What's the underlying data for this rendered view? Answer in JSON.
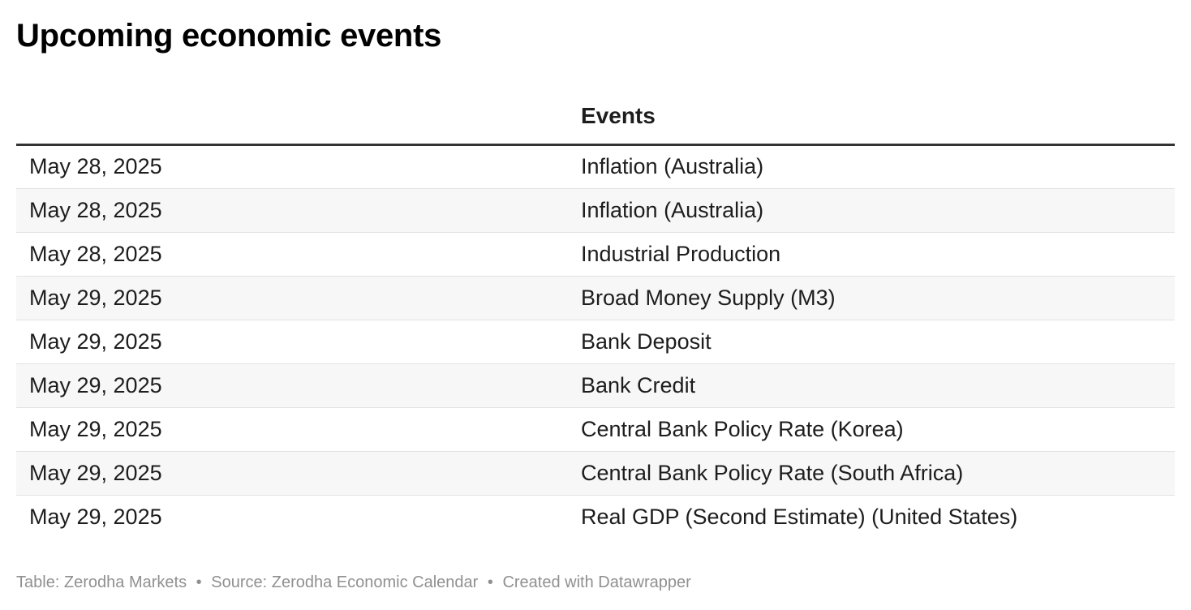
{
  "title": "Upcoming economic events",
  "chart_data": {
    "type": "table",
    "columns": [
      "",
      "Events"
    ],
    "rows": [
      {
        "date": "May 28, 2025",
        "event": "Inflation (Australia)"
      },
      {
        "date": "May 28, 2025",
        "event": "Inflation (Australia)"
      },
      {
        "date": "May 28, 2025",
        "event": "Industrial Production"
      },
      {
        "date": "May 29, 2025",
        "event": "Broad Money Supply (M3)"
      },
      {
        "date": "May 29, 2025",
        "event": "Bank Deposit"
      },
      {
        "date": "May 29, 2025",
        "event": "Bank Credit"
      },
      {
        "date": "May 29, 2025",
        "event": "Central Bank Policy Rate (Korea)"
      },
      {
        "date": "May 29, 2025",
        "event": "Central Bank Policy Rate (South Africa)"
      },
      {
        "date": "May 29, 2025",
        "event": "Real GDP (Second Estimate) (United States)"
      }
    ]
  },
  "footer": {
    "table_credit": "Table: Zerodha Markets",
    "source": "Source: Zerodha Economic Calendar",
    "created_with": "Created with Datawrapper",
    "separator": "•"
  },
  "colors": {
    "header_rule": "#333333",
    "row_stripe": "#f7f7f7",
    "row_border": "#e2e2e2",
    "footer_text": "#909090"
  }
}
